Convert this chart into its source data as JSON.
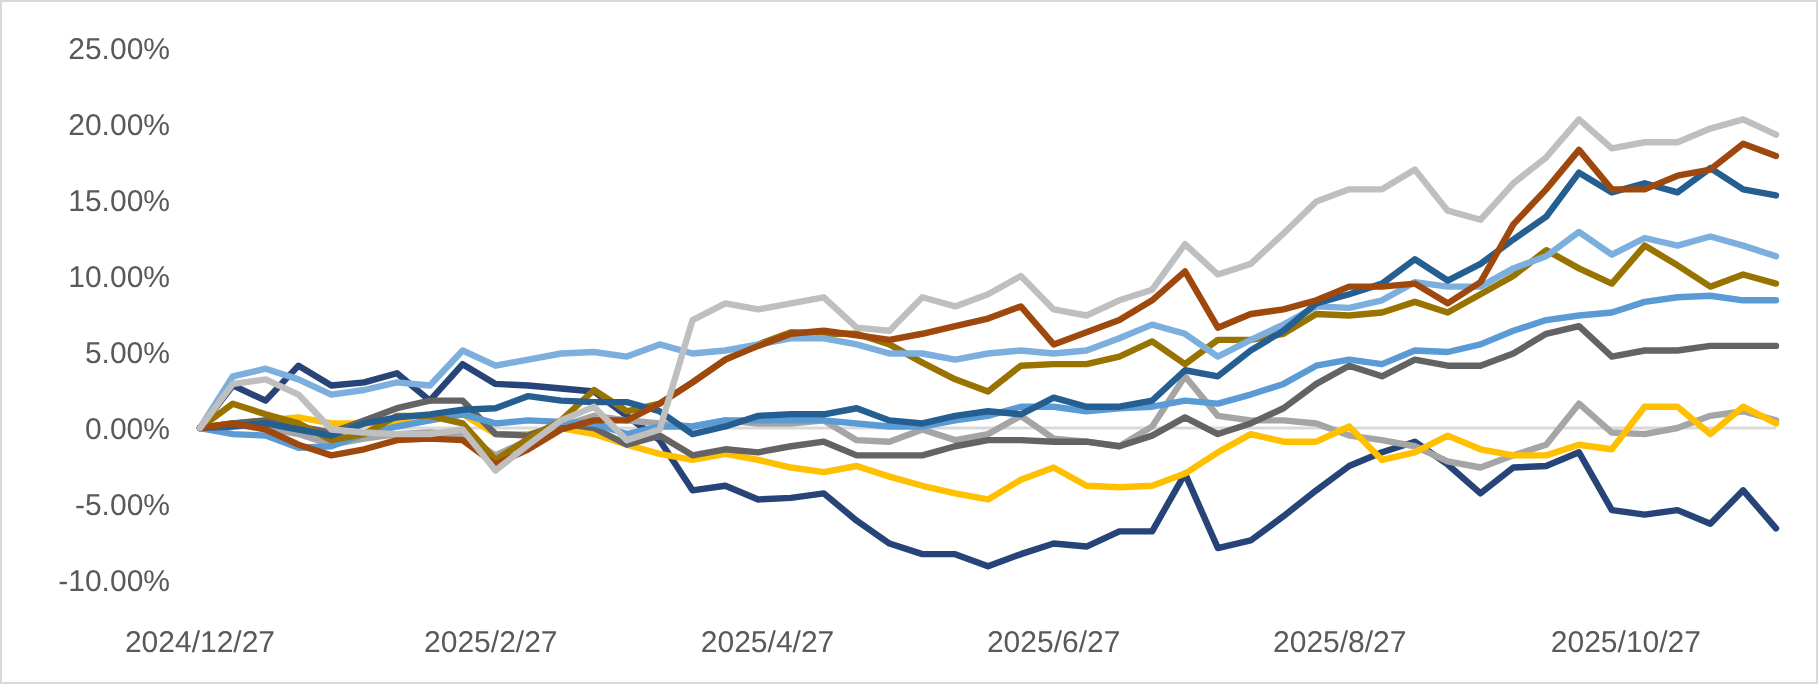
{
  "chart_data": {
    "type": "line",
    "x": [
      "2024-12-27",
      "2025-01-03",
      "2025-01-10",
      "2025-01-17",
      "2025-01-24",
      "2025-01-31",
      "2025-02-07",
      "2025-02-14",
      "2025-02-21",
      "2025-02-28",
      "2025-03-07",
      "2025-03-14",
      "2025-03-21",
      "2025-03-28",
      "2025-04-04",
      "2025-04-11",
      "2025-04-18",
      "2025-04-25",
      "2025-05-02",
      "2025-05-09",
      "2025-05-16",
      "2025-05-23",
      "2025-05-30",
      "2025-06-06",
      "2025-06-13",
      "2025-06-20",
      "2025-06-27",
      "2025-07-04",
      "2025-07-11",
      "2025-07-18",
      "2025-07-25",
      "2025-08-01",
      "2025-08-08",
      "2025-08-15",
      "2025-08-22",
      "2025-08-29",
      "2025-09-05",
      "2025-09-12",
      "2025-09-19",
      "2025-09-26",
      "2025-10-03",
      "2025-10-10",
      "2025-10-17",
      "2025-10-24",
      "2025-10-31",
      "2025-11-07",
      "2025-11-14",
      "2025-11-21",
      "2025-11-28"
    ],
    "series": [
      {
        "color": "#264478",
        "values": [
          0,
          2.8,
          1.8,
          4.1,
          2.8,
          3.0,
          3.6,
          1.8,
          4.2,
          2.9,
          2.8,
          2.6,
          2.4,
          0.8,
          -0.8,
          -4.1,
          -3.8,
          -4.7,
          -4.6,
          -4.3,
          -6.1,
          -7.6,
          -8.3,
          -8.3,
          -9.1,
          -8.3,
          -7.6,
          -7.8,
          -6.8,
          -6.8,
          -3.0,
          -7.9,
          -7.4,
          -5.8,
          -4.1,
          -2.5,
          -1.6,
          -0.9,
          -2.4,
          -4.3,
          -2.6,
          -2.5,
          -1.6,
          -5.4,
          -5.7,
          -5.4,
          -6.3,
          -4.1,
          -6.6
        ]
      },
      {
        "color": "#a5a5a5",
        "values": [
          0,
          0.3,
          0.0,
          -0.4,
          -1.1,
          -0.7,
          -0.4,
          -0.3,
          -0.4,
          -1.8,
          -0.8,
          0.1,
          0.8,
          0.5,
          0.3,
          0.1,
          0.5,
          0.3,
          0.3,
          0.5,
          -0.8,
          -0.9,
          -0.1,
          -0.8,
          -0.4,
          0.8,
          -0.7,
          -0.9,
          -1.2,
          0.1,
          3.4,
          0.8,
          0.5,
          0.5,
          0.3,
          -0.5,
          -0.8,
          -1.2,
          -2.2,
          -2.6,
          -1.8,
          -1.1,
          1.6,
          -0.3,
          -0.4,
          0.0,
          0.8,
          1.1,
          0.5
        ]
      },
      {
        "color": "#ffc000",
        "values": [
          0,
          0.3,
          0.5,
          0.7,
          0.3,
          0.3,
          0.4,
          0.5,
          0.9,
          -0.4,
          -0.4,
          0.0,
          -0.4,
          -1.1,
          -1.7,
          -2.1,
          -1.7,
          -2.1,
          -2.6,
          -2.9,
          -2.5,
          -3.2,
          -3.8,
          -4.3,
          -4.7,
          -3.4,
          -2.6,
          -3.8,
          -3.9,
          -3.8,
          -3.0,
          -1.6,
          -0.4,
          -0.9,
          -0.9,
          0.1,
          -2.1,
          -1.6,
          -0.5,
          -1.4,
          -1.8,
          -1.8,
          -1.1,
          -1.4,
          1.4,
          1.4,
          -0.4,
          1.4,
          0.3
        ]
      },
      {
        "color": "#636363",
        "values": [
          0,
          0.3,
          0.5,
          0.1,
          -0.3,
          0.5,
          1.3,
          1.8,
          1.8,
          -0.4,
          -0.5,
          0.3,
          0.0,
          -1.1,
          -0.5,
          -1.8,
          -1.4,
          -1.6,
          -1.2,
          -0.9,
          -1.8,
          -1.8,
          -1.8,
          -1.2,
          -0.8,
          -0.8,
          -0.9,
          -0.9,
          -1.2,
          -0.5,
          0.7,
          -0.4,
          0.3,
          1.3,
          2.9,
          4.1,
          3.4,
          4.5,
          4.1,
          4.1,
          4.9,
          6.2,
          6.7,
          4.7,
          5.1,
          5.1,
          5.4,
          5.4,
          5.4
        ]
      },
      {
        "color": "#5b9bd5",
        "values": [
          0,
          -0.4,
          -0.5,
          -1.3,
          -1.2,
          -0.4,
          0.1,
          0.5,
          0.9,
          0.3,
          0.5,
          0.4,
          0.3,
          -0.4,
          0.1,
          0.1,
          0.5,
          0.5,
          0.5,
          0.5,
          0.3,
          0.1,
          0.1,
          0.5,
          0.8,
          1.4,
          1.4,
          1.1,
          1.3,
          1.4,
          1.8,
          1.6,
          2.2,
          2.9,
          4.1,
          4.5,
          4.2,
          5.1,
          5.0,
          5.5,
          6.4,
          7.1,
          7.4,
          7.6,
          8.3,
          8.6,
          8.7,
          8.4,
          8.4
        ]
      },
      {
        "color": "#997300",
        "values": [
          0,
          1.6,
          0.9,
          0.3,
          -0.8,
          -0.4,
          0.8,
          0.8,
          0.3,
          -2.1,
          -0.7,
          0.5,
          2.5,
          1.1,
          1.6,
          3.0,
          4.5,
          5.5,
          6.3,
          6.2,
          6.2,
          5.5,
          4.3,
          3.2,
          2.4,
          4.1,
          4.2,
          4.2,
          4.7,
          5.7,
          4.2,
          5.8,
          5.8,
          6.2,
          7.5,
          7.4,
          7.6,
          8.3,
          7.6,
          8.8,
          10.0,
          11.7,
          10.5,
          9.5,
          12.0,
          10.7,
          9.3,
          10.1,
          9.5
        ]
      },
      {
        "color": "#7cafdd",
        "values": [
          0,
          3.4,
          3.9,
          3.2,
          2.2,
          2.5,
          3.0,
          2.8,
          5.1,
          4.1,
          4.5,
          4.9,
          5.0,
          4.7,
          5.5,
          4.9,
          5.1,
          5.5,
          5.9,
          5.9,
          5.5,
          4.9,
          4.9,
          4.5,
          4.9,
          5.1,
          4.9,
          5.1,
          5.9,
          6.8,
          6.2,
          4.7,
          5.8,
          6.8,
          8.0,
          7.9,
          8.4,
          9.6,
          9.3,
          9.3,
          10.5,
          11.3,
          12.9,
          11.4,
          12.5,
          12.0,
          12.6,
          12.0,
          11.3
        ]
      },
      {
        "color": "#255e91",
        "values": [
          0,
          0.1,
          0.3,
          -0.1,
          -0.5,
          0.3,
          0.7,
          0.9,
          1.2,
          1.3,
          2.1,
          1.8,
          1.7,
          1.7,
          1.1,
          -0.4,
          0.1,
          0.8,
          0.9,
          0.9,
          1.3,
          0.5,
          0.3,
          0.8,
          1.1,
          0.9,
          2.0,
          1.4,
          1.4,
          1.8,
          3.8,
          3.4,
          5.1,
          6.4,
          8.2,
          8.8,
          9.5,
          11.1,
          9.7,
          10.8,
          12.4,
          13.9,
          16.8,
          15.5,
          16.1,
          15.5,
          17.1,
          15.7,
          15.3
        ]
      },
      {
        "color": "#9e480e",
        "values": [
          0,
          0.3,
          -0.1,
          -1.1,
          -1.8,
          -1.4,
          -0.8,
          -0.7,
          -0.8,
          -2.4,
          -1.4,
          -0.1,
          0.5,
          0.5,
          1.6,
          3.0,
          4.5,
          5.4,
          6.2,
          6.4,
          6.1,
          5.8,
          6.2,
          6.7,
          7.2,
          8.0,
          5.5,
          6.3,
          7.1,
          8.4,
          10.3,
          6.6,
          7.5,
          7.8,
          8.4,
          9.3,
          9.3,
          9.5,
          8.2,
          9.6,
          13.4,
          15.7,
          18.3,
          15.7,
          15.7,
          16.6,
          17.0,
          18.7,
          17.9
        ]
      },
      {
        "color": "#bfbfbf",
        "values": [
          0,
          2.9,
          3.2,
          2.2,
          -0.1,
          -0.3,
          -0.4,
          -0.4,
          -0.1,
          -2.8,
          -1.1,
          0.5,
          1.4,
          -0.8,
          -0.1,
          7.1,
          8.2,
          7.8,
          8.2,
          8.6,
          6.6,
          6.4,
          8.6,
          8.0,
          8.8,
          10.0,
          7.8,
          7.4,
          8.4,
          9.1,
          12.1,
          10.1,
          10.8,
          12.8,
          14.9,
          15.7,
          15.7,
          17.0,
          14.3,
          13.7,
          16.1,
          17.8,
          20.3,
          18.4,
          18.8,
          18.8,
          19.7,
          20.3,
          19.3
        ]
      }
    ],
    "xlim": [
      "2024-12-27",
      "2025-11-28"
    ],
    "xticks": [
      {
        "value": "2024-12-27",
        "label": "2024/12/27"
      },
      {
        "value": "2025-02-27",
        "label": "2025/2/27"
      },
      {
        "value": "2025-04-27",
        "label": "2025/4/27"
      },
      {
        "value": "2025-06-27",
        "label": "2025/6/27"
      },
      {
        "value": "2025-08-27",
        "label": "2025/8/27"
      },
      {
        "value": "2025-10-27",
        "label": "2025/10/27"
      }
    ],
    "ylim": [
      -10,
      25
    ],
    "yticks": [
      {
        "value": -10,
        "label": "-10.00%"
      },
      {
        "value": -5,
        "label": "-5.00%"
      },
      {
        "value": 0,
        "label": "0.00%"
      },
      {
        "value": 5,
        "label": "5.00%"
      },
      {
        "value": 10,
        "label": "10.00%"
      },
      {
        "value": 15,
        "label": "15.00%"
      },
      {
        "value": 20,
        "label": "20.00%"
      },
      {
        "value": 25,
        "label": "25.00%"
      }
    ],
    "ref_lines": [
      {
        "axis": "y",
        "value": 0,
        "color": "#d9d9d9"
      }
    ],
    "marker": "none",
    "line_style": "solid"
  }
}
